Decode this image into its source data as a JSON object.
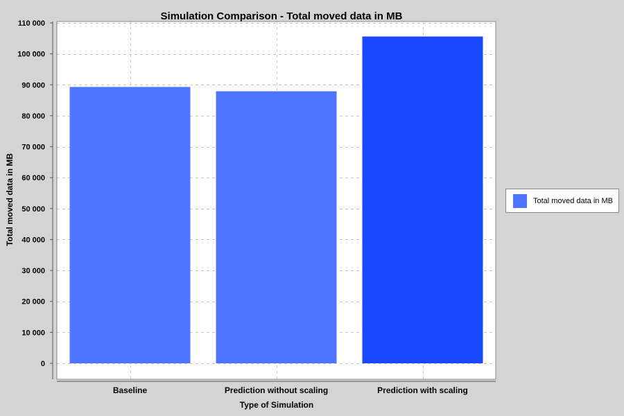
{
  "chart_data": {
    "type": "bar",
    "title": "Simulation Comparison - Total moved data in MB",
    "xlabel": "Type of Simulation",
    "ylabel": "Total moved data in MB",
    "categories": [
      "Baseline",
      "Prediction without scaling",
      "Prediction with scaling"
    ],
    "series": [
      {
        "name": "Total moved data in MB",
        "values": [
          89300,
          87900,
          105600
        ]
      }
    ],
    "bar_colors": [
      "#4f74ff",
      "#4f74ff",
      "#1a48ff"
    ],
    "ylim": [
      0,
      110000
    ],
    "yticks": [
      0,
      10000,
      20000,
      30000,
      40000,
      50000,
      60000,
      70000,
      80000,
      90000,
      100000,
      110000
    ],
    "ytick_labels": [
      "0",
      "10 000",
      "20 000",
      "30 000",
      "40 000",
      "50 000",
      "60 000",
      "70 000",
      "80 000",
      "90 000",
      "100 000",
      "110 000"
    ],
    "grid": true,
    "legend_position": "right"
  },
  "legend": {
    "label": "Total moved data in MB",
    "color": "#4f74ff"
  }
}
